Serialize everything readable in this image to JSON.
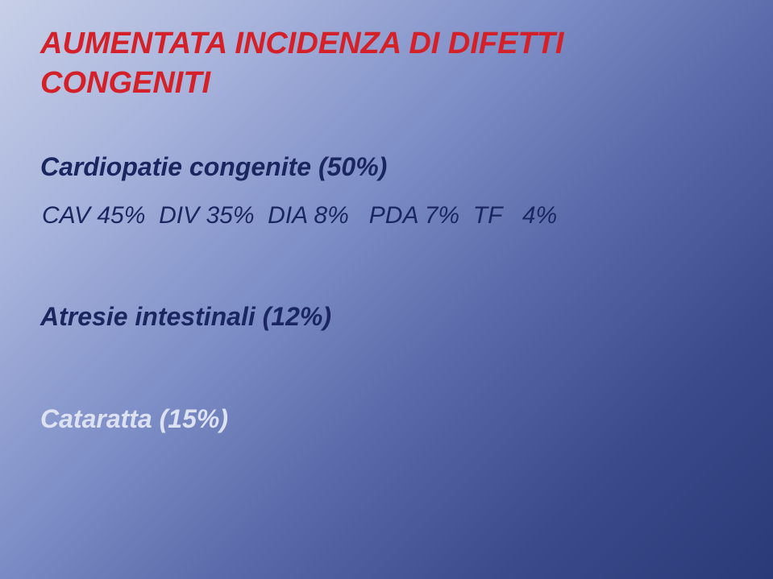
{
  "slide": {
    "background": {
      "gradient_start": "#c8d0e8",
      "gradient_end": "#2a3a78",
      "gradient_angle_deg": 135
    },
    "title": {
      "line1": "AUMENTATA INCIDENZA DI DIFETTI",
      "line2": "CONGENITI",
      "color": "#d42028",
      "font_style": "bold italic",
      "font_size_pt": 38
    },
    "cardiopatie": {
      "heading": "Cardiopatie congenite (50%)",
      "heading_color": "#1a2660",
      "heading_font_size_pt": 32,
      "items": [
        {
          "label": "CAV",
          "value": "45%"
        },
        {
          "label": "DIV",
          "value": "35%"
        },
        {
          "label": "DIA",
          "value": "8%"
        },
        {
          "label": "PDA",
          "value": "7%"
        },
        {
          "label": "TF",
          "value": "4%"
        }
      ],
      "items_color": "#1a2660",
      "items_font_size_pt": 30
    },
    "atresie": {
      "text": "Atresie intestinali (12%)",
      "color": "#1a2660",
      "font_size_pt": 32
    },
    "cataratta": {
      "text": "Cataratta (15%)",
      "color": "#dce2f2",
      "font_size_pt": 32
    }
  }
}
